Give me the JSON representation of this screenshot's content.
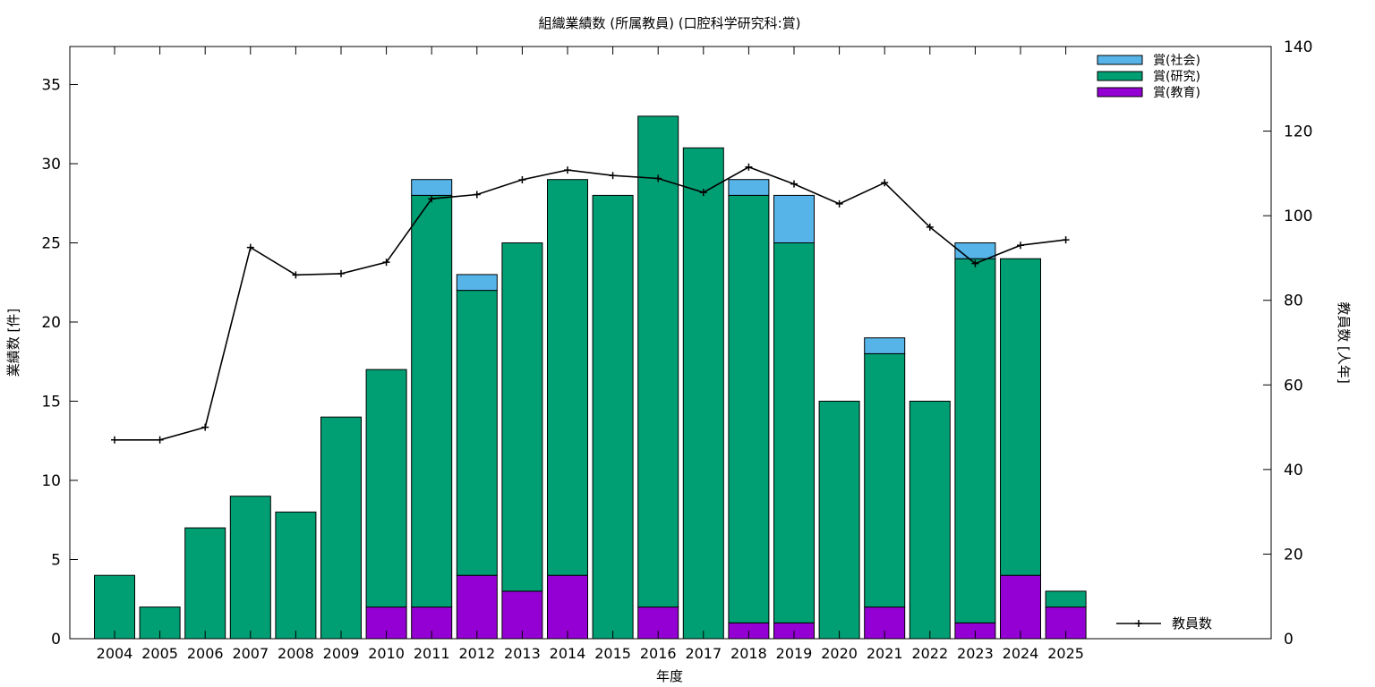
{
  "chart_data": {
    "type": "bar",
    "stacked": true,
    "title": "組織業績数 (所属教員) (口腔科学研究科:賞)",
    "xlabel": "年度",
    "ylabel": "業績数 [件]",
    "y2label": "教員数 [人年]",
    "ylim": [
      0,
      37.4
    ],
    "y2lim": [
      0,
      140
    ],
    "yticks": [
      0,
      5,
      10,
      15,
      20,
      25,
      30,
      35
    ],
    "y2ticks": [
      0,
      20,
      40,
      60,
      80,
      100,
      120,
      140
    ],
    "grid": false,
    "legend_position": "top-right",
    "categories": [
      "2004",
      "2005",
      "2006",
      "2007",
      "2008",
      "2009",
      "2010",
      "2011",
      "2012",
      "2013",
      "2014",
      "2015",
      "2016",
      "2017",
      "2018",
      "2019",
      "2020",
      "2021",
      "2022",
      "2023",
      "2024",
      "2025"
    ],
    "series": [
      {
        "name": "賞(教育)",
        "color": "#9400d3",
        "values": [
          0,
          0,
          0,
          0,
          0,
          0,
          2,
          2,
          4,
          3,
          4,
          0,
          2,
          0,
          1,
          1,
          0,
          2,
          0,
          1,
          4,
          2
        ]
      },
      {
        "name": "賞(研究)",
        "color": "#009e73",
        "values": [
          4,
          2,
          7,
          9,
          8,
          14,
          15,
          26,
          18,
          22,
          25,
          28,
          31,
          31,
          27,
          24,
          15,
          16,
          15,
          23,
          20,
          1
        ]
      },
      {
        "name": "賞(社会)",
        "color": "#56b4e9",
        "values": [
          0,
          0,
          0,
          0,
          0,
          0,
          0,
          1,
          1,
          0,
          0,
          0,
          0,
          0,
          1,
          3,
          0,
          1,
          0,
          1,
          0,
          0
        ]
      }
    ],
    "line_series": {
      "name": "教員数",
      "axis": "right",
      "color": "#000000",
      "values": [
        47,
        47,
        50,
        92.5,
        86,
        86.3,
        89,
        104,
        105,
        108.5,
        110.8,
        109.5,
        108.8,
        105.5,
        111.5,
        107.5,
        102.8,
        107.8,
        97.3,
        88.7,
        93,
        94.3
      ]
    }
  }
}
